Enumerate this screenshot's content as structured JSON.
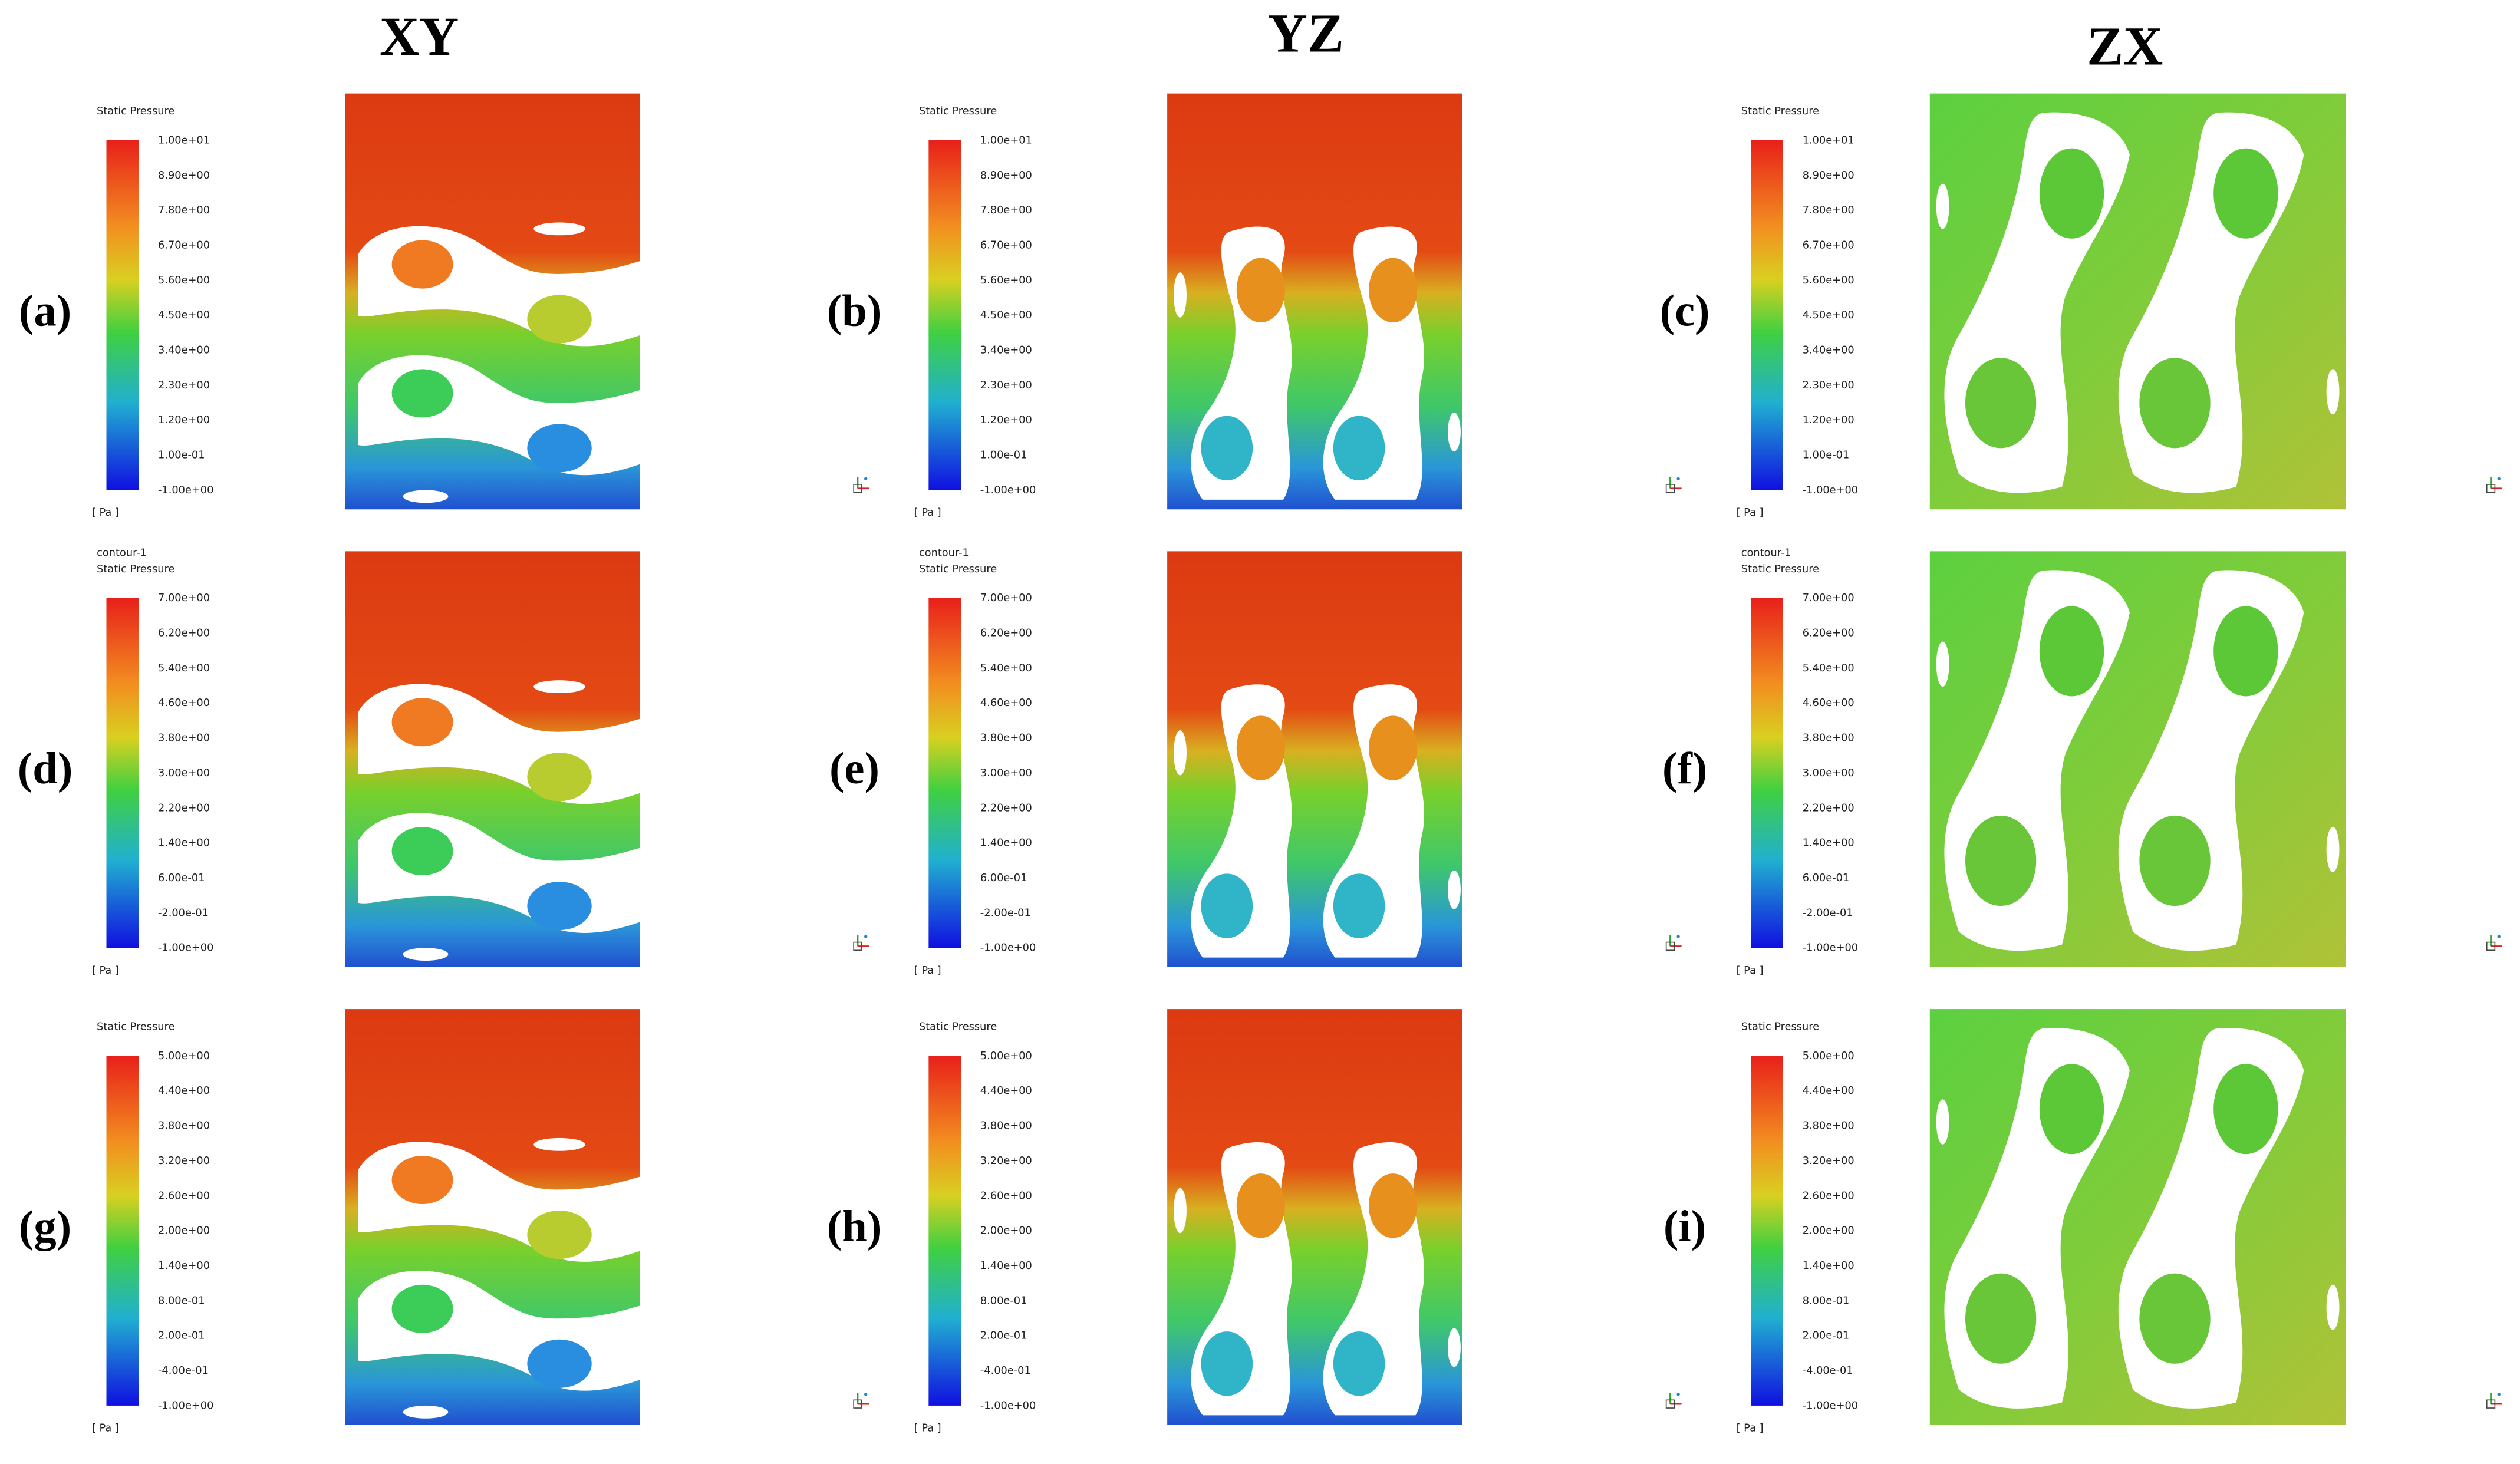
{
  "columns": [
    "XY",
    "YZ",
    "ZX"
  ],
  "rows": [
    {
      "panels": [
        "(a)",
        "(b)",
        "(c)"
      ],
      "legend": {
        "title": [
          "Static Pressure"
        ],
        "unit": "[ Pa ]",
        "ticks": [
          "1.00e+01",
          "8.90e+00",
          "7.80e+00",
          "6.70e+00",
          "5.60e+00",
          "4.50e+00",
          "3.40e+00",
          "2.30e+00",
          "1.20e+00",
          "1.00e-01",
          "-1.00e+00"
        ]
      }
    },
    {
      "panels": [
        "(d)",
        "(e)",
        "(f)"
      ],
      "legend": {
        "title": [
          "contour-1",
          "Static Pressure"
        ],
        "unit": "[ Pa ]",
        "ticks": [
          "7.00e+00",
          "6.20e+00",
          "5.40e+00",
          "4.60e+00",
          "3.80e+00",
          "3.00e+00",
          "2.20e+00",
          "1.40e+00",
          "6.00e-01",
          "-2.00e-01",
          "-1.00e+00"
        ]
      }
    },
    {
      "panels": [
        "(g)",
        "(h)",
        "(i)"
      ],
      "legend": {
        "title": [
          "Static Pressure"
        ],
        "unit": "[ Pa ]",
        "ticks": [
          "5.00e+00",
          "4.40e+00",
          "3.80e+00",
          "3.20e+00",
          "2.60e+00",
          "2.00e+00",
          "1.40e+00",
          "8.00e-01",
          "2.00e-01",
          "-4.00e-01",
          "-1.00e+00"
        ]
      }
    }
  ]
}
